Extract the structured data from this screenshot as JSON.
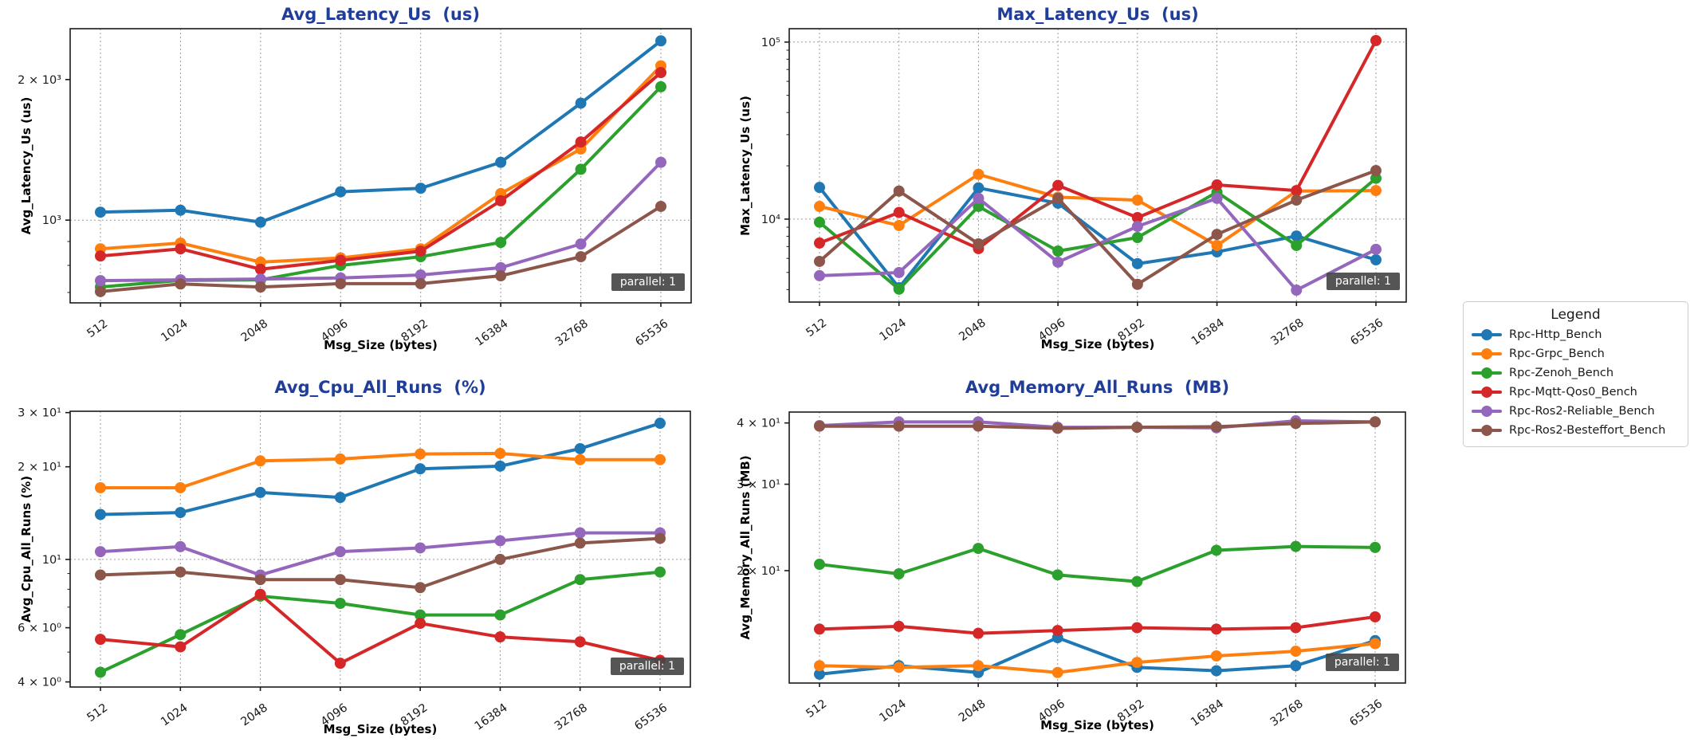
{
  "page": {
    "background": "#ffffff"
  },
  "legend": {
    "title": "Legend",
    "entries": [
      {
        "label": "Rpc-Http_Bench",
        "color": "#1f77b4"
      },
      {
        "label": "Rpc-Grpc_Bench",
        "color": "#ff7f0e"
      },
      {
        "label": "Rpc-Zenoh_Bench",
        "color": "#2ca02c"
      },
      {
        "label": "Rpc-Mqtt-Qos0_Bench",
        "color": "#d62728"
      },
      {
        "label": "Rpc-Ros2-Reliable_Bench",
        "color": "#9467bd"
      },
      {
        "label": "Rpc-Ros2-Besteffort_Bench",
        "color": "#8c564b"
      }
    ]
  },
  "chart_data": [
    {
      "type": "line",
      "title": "Avg_Latency_Us  (us)",
      "xlabel": "Msg_Size (bytes)",
      "ylabel": "Avg_Latency_Us (us)",
      "badge": "parallel: 1",
      "yscale": "log",
      "ylim": [
        665,
        2570
      ],
      "yticks": [
        {
          "value": 2000,
          "label": "2 × 10³",
          "grid": false
        },
        {
          "value": 1000,
          "label": "10³",
          "grid": true
        }
      ],
      "categories": [
        "512",
        "1024",
        "2048",
        "4096",
        "8192",
        "16384",
        "32768",
        "65536"
      ],
      "series": [
        {
          "name": "Rpc-Http_Bench",
          "color": "#1f77b4",
          "values": [
            1040,
            1050,
            990,
            1150,
            1170,
            1330,
            1780,
            2420
          ]
        },
        {
          "name": "Rpc-Grpc_Bench",
          "color": "#ff7f0e",
          "values": [
            868,
            893,
            813,
            830,
            868,
            1140,
            1420,
            2140
          ]
        },
        {
          "name": "Rpc-Zenoh_Bench",
          "color": "#2ca02c",
          "values": [
            719,
            743,
            745,
            800,
            835,
            896,
            1285,
            1930
          ]
        },
        {
          "name": "Rpc-Mqtt-Qos0_Bench",
          "color": "#d62728",
          "values": [
            838,
            868,
            785,
            820,
            858,
            1100,
            1470,
            2070
          ]
        },
        {
          "name": "Rpc-Ros2-Reliable_Bench",
          "color": "#9467bd",
          "values": [
            742,
            745,
            748,
            752,
            763,
            791,
            889,
            1330
          ]
        },
        {
          "name": "Rpc-Ros2-Besteffort_Bench",
          "color": "#8c564b",
          "values": [
            703,
            730,
            719,
            731,
            731,
            760,
            835,
            1070
          ]
        }
      ]
    },
    {
      "type": "line",
      "title": "Max_Latency_Us  (us)",
      "xlabel": "Msg_Size (bytes)",
      "ylabel": "Max_Latency_Us (us)",
      "badge": "parallel: 1",
      "yscale": "log",
      "ylim": [
        3400,
        119000
      ],
      "yticks": [
        {
          "value": 100000,
          "label": "10⁵",
          "grid": true
        },
        {
          "value": 10000,
          "label": "10⁴",
          "grid": true
        }
      ],
      "categories": [
        "512",
        "1024",
        "2048",
        "4096",
        "8192",
        "16384",
        "32768",
        "65536"
      ],
      "series": [
        {
          "name": "Rpc-Http_Bench",
          "color": "#1f77b4",
          "values": [
            15100,
            4100,
            15000,
            12300,
            5600,
            6530,
            8030,
            5890
          ]
        },
        {
          "name": "Rpc-Grpc_Bench",
          "color": "#ff7f0e",
          "values": [
            11800,
            9200,
            17900,
            13300,
            12800,
            7100,
            14400,
            14500
          ]
        },
        {
          "name": "Rpc-Zenoh_Bench",
          "color": "#2ca02c",
          "values": [
            9600,
            4020,
            11800,
            6600,
            7870,
            14200,
            7100,
            17000
          ]
        },
        {
          "name": "Rpc-Mqtt-Qos0_Bench",
          "color": "#d62728",
          "values": [
            7330,
            10900,
            6810,
            15500,
            10200,
            15600,
            14500,
            102000
          ]
        },
        {
          "name": "Rpc-Ros2-Reliable_Bench",
          "color": "#9467bd",
          "values": [
            4790,
            4990,
            13100,
            5710,
            9100,
            13100,
            3970,
            6750
          ]
        },
        {
          "name": "Rpc-Ros2-Besteffort_Bench",
          "color": "#8c564b",
          "values": [
            5770,
            14400,
            7250,
            13100,
            4280,
            8200,
            12800,
            18800
          ]
        }
      ]
    },
    {
      "type": "line",
      "title": "Avg_Cpu_All_Runs  (%)",
      "xlabel": "Msg_Size (bytes)",
      "ylabel": "Avg_Cpu_All_Runs (%)",
      "badge": "parallel: 1",
      "yscale": "log",
      "ylim": [
        3.85,
        30.3
      ],
      "yticks": [
        {
          "value": 30,
          "label": "3 × 10¹",
          "grid": false
        },
        {
          "value": 20,
          "label": "2 × 10¹",
          "grid": false
        },
        {
          "value": 10,
          "label": "10¹",
          "grid": true
        },
        {
          "value": 6,
          "label": "6 × 10⁰",
          "grid": false
        },
        {
          "value": 4,
          "label": "4 × 10⁰",
          "grid": false
        }
      ],
      "categories": [
        "512",
        "1024",
        "2048",
        "4096",
        "8192",
        "16384",
        "32768",
        "65536"
      ],
      "series": [
        {
          "name": "Rpc-Http_Bench",
          "color": "#1f77b4",
          "values": [
            14.0,
            14.2,
            16.5,
            15.9,
            19.7,
            20.1,
            22.9,
            27.7
          ]
        },
        {
          "name": "Rpc-Grpc_Bench",
          "color": "#ff7f0e",
          "values": [
            17.1,
            17.1,
            20.9,
            21.2,
            22.0,
            22.1,
            21.1,
            21.1
          ]
        },
        {
          "name": "Rpc-Zenoh_Bench",
          "color": "#2ca02c",
          "values": [
            4.3,
            5.7,
            7.6,
            7.2,
            6.6,
            6.6,
            8.6,
            9.1
          ]
        },
        {
          "name": "Rpc-Mqtt-Qos0_Bench",
          "color": "#d62728",
          "values": [
            5.5,
            5.2,
            7.7,
            4.6,
            6.2,
            5.6,
            5.4,
            4.7
          ]
        },
        {
          "name": "Rpc-Ros2-Reliable_Bench",
          "color": "#9467bd",
          "values": [
            10.6,
            11.0,
            8.9,
            10.6,
            10.9,
            11.5,
            12.2,
            12.2
          ]
        },
        {
          "name": "Rpc-Ros2-Besteffort_Bench",
          "color": "#8c564b",
          "values": [
            8.9,
            9.1,
            8.6,
            8.6,
            8.1,
            10.0,
            11.3,
            11.7
          ]
        }
      ]
    },
    {
      "type": "line",
      "title": "Avg_Memory_All_Runs  (MB)",
      "xlabel": "Msg_Size (bytes)",
      "ylabel": "Avg_Memory_All_Runs (MB)",
      "badge": "parallel: 1",
      "yscale": "log",
      "ylim": [
        11.8,
        42.1
      ],
      "yticks": [
        {
          "value": 40,
          "label": "4 × 10¹",
          "grid": false
        },
        {
          "value": 30,
          "label": "3 × 10¹",
          "grid": false
        },
        {
          "value": 20,
          "label": "2 × 10¹",
          "grid": false
        }
      ],
      "categories": [
        "512",
        "1024",
        "2048",
        "4096",
        "8192",
        "16384",
        "32768",
        "65536"
      ],
      "series": [
        {
          "name": "Rpc-Http_Bench",
          "color": "#1f77b4",
          "values": [
            12.3,
            12.8,
            12.4,
            14.6,
            12.7,
            12.5,
            12.8,
            14.4
          ]
        },
        {
          "name": "Rpc-Grpc_Bench",
          "color": "#ff7f0e",
          "values": [
            12.8,
            12.7,
            12.8,
            12.4,
            13.0,
            13.4,
            13.7,
            14.2
          ]
        },
        {
          "name": "Rpc-Zenoh_Bench",
          "color": "#2ca02c",
          "values": [
            20.6,
            19.7,
            22.2,
            19.6,
            19.0,
            22.0,
            22.4,
            22.3
          ]
        },
        {
          "name": "Rpc-Mqtt-Qos0_Bench",
          "color": "#d62728",
          "values": [
            15.2,
            15.4,
            14.9,
            15.1,
            15.3,
            15.2,
            15.3,
            16.1
          ]
        },
        {
          "name": "Rpc-Ros2-Reliable_Bench",
          "color": "#9467bd",
          "values": [
            39.5,
            40.2,
            40.2,
            39.2,
            39.2,
            39.1,
            40.4,
            40.2
          ]
        },
        {
          "name": "Rpc-Ros2-Besteffort_Bench",
          "color": "#8c564b",
          "values": [
            39.4,
            39.4,
            39.4,
            39.0,
            39.2,
            39.3,
            39.9,
            40.2
          ]
        }
      ]
    }
  ]
}
